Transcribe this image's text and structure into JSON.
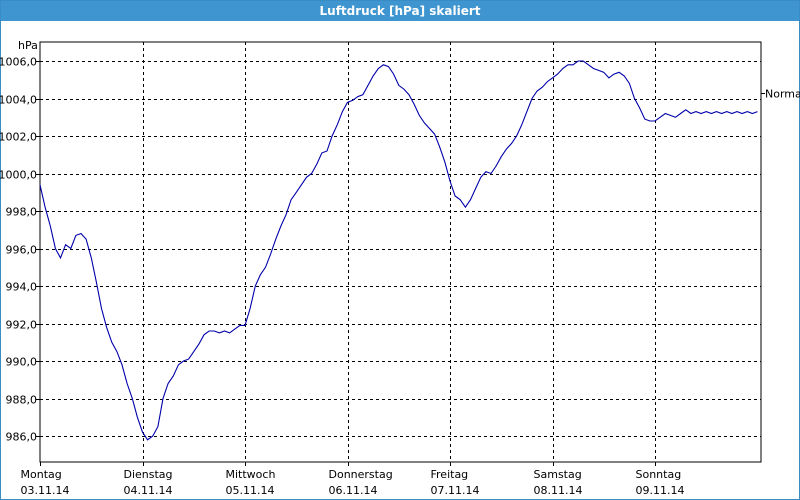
{
  "window": {
    "title": "Luftdruck [hPa] skaliert"
  },
  "chart_data": {
    "type": "line",
    "title": "Luftdruck [hPa] skaliert",
    "ylabel": "hPa",
    "xlabel": "",
    "ylim": [
      985.0,
      1007.0
    ],
    "yticks": [
      "986,0",
      "988,0",
      "990,0",
      "992,0",
      "994,0",
      "996,0",
      "998,0",
      "1000,0",
      "1002,0",
      "1004,0",
      "1006,0"
    ],
    "ytick_values": [
      986,
      988,
      990,
      992,
      994,
      996,
      998,
      1000,
      1002,
      1004,
      1006
    ],
    "xlim": [
      0,
      7.05
    ],
    "xtick_values": [
      0,
      1,
      2,
      3,
      4,
      5,
      6
    ],
    "xticks": [
      {
        "day": "Montag",
        "date": "03.11.14"
      },
      {
        "day": "Dienstag",
        "date": "04.11.14"
      },
      {
        "day": "Mittwoch",
        "date": "05.11.14"
      },
      {
        "day": "Donnerstag",
        "date": "06.11.14"
      },
      {
        "day": "Freitag",
        "date": "07.11.14"
      },
      {
        "day": "Samstag",
        "date": "08.11.14"
      },
      {
        "day": "Sonntag",
        "date": "09.11.14"
      }
    ],
    "grid": true,
    "reference_line": {
      "label": "Normal",
      "value": 1004.3
    },
    "line_color": "#0000aa",
    "series": [
      {
        "x": [
          0.0,
          0.05,
          0.1,
          0.15,
          0.2,
          0.25,
          0.3,
          0.35,
          0.4,
          0.45,
          0.5,
          0.55,
          0.6,
          0.65,
          0.7,
          0.75,
          0.8,
          0.85,
          0.9,
          0.95,
          1.0,
          1.05,
          1.1,
          1.15,
          1.2,
          1.25,
          1.3,
          1.35,
          1.4,
          1.45,
          1.5,
          1.55,
          1.6,
          1.65,
          1.7,
          1.75,
          1.8,
          1.85,
          1.9,
          1.95,
          2.0,
          2.05,
          2.1,
          2.15,
          2.2,
          2.25,
          2.3,
          2.35,
          2.4,
          2.45,
          2.5,
          2.55,
          2.6,
          2.65,
          2.7,
          2.75,
          2.8,
          2.85,
          2.9,
          2.95,
          3.0,
          3.05,
          3.1,
          3.15,
          3.2,
          3.25,
          3.3,
          3.35,
          3.4,
          3.45,
          3.5,
          3.55,
          3.6,
          3.65,
          3.7,
          3.75,
          3.8,
          3.85,
          3.9,
          3.95,
          4.0,
          4.05,
          4.1,
          4.15,
          4.2,
          4.25,
          4.3,
          4.35,
          4.4,
          4.45,
          4.5,
          4.55,
          4.6,
          4.65,
          4.7,
          4.75,
          4.8,
          4.85,
          4.9,
          4.95,
          5.0,
          5.05,
          5.1,
          5.15,
          5.2,
          5.25,
          5.3,
          5.35,
          5.4,
          5.45,
          5.5,
          5.55,
          5.6,
          5.65,
          5.7,
          5.75,
          5.8,
          5.85,
          5.9,
          5.95,
          6.0,
          6.05,
          6.1,
          6.15,
          6.2,
          6.25,
          6.3,
          6.35,
          6.4,
          6.45,
          6.5,
          6.55,
          6.6,
          6.65,
          6.7,
          6.75,
          6.8,
          6.85,
          6.9,
          6.95,
          7.0
        ],
        "y": [
          999.4,
          998.2,
          997.2,
          996.0,
          995.5,
          996.2,
          996.0,
          996.7,
          996.8,
          996.5,
          995.5,
          994.2,
          992.8,
          991.8,
          991.0,
          990.5,
          989.8,
          988.8,
          988.0,
          987.0,
          986.2,
          985.8,
          986.0,
          986.5,
          988.0,
          988.8,
          989.2,
          989.8,
          990.0,
          990.1,
          990.5,
          990.9,
          991.4,
          991.6,
          991.6,
          991.5,
          991.6,
          991.5,
          991.7,
          991.9,
          991.9,
          992.8,
          994.0,
          994.6,
          995.0,
          995.7,
          996.5,
          997.2,
          997.8,
          998.6,
          999.0,
          999.4,
          999.8,
          1000.0,
          1000.5,
          1001.1,
          1001.2,
          1002.0,
          1002.6,
          1003.3,
          1003.8,
          1003.9,
          1004.1,
          1004.2,
          1004.7,
          1005.2,
          1005.6,
          1005.8,
          1005.7,
          1005.3,
          1004.7,
          1004.5,
          1004.2,
          1003.7,
          1003.1,
          1002.7,
          1002.4,
          1002.1,
          1001.4,
          1000.6,
          999.6,
          998.8,
          998.6,
          998.2,
          998.6,
          999.2,
          999.8,
          1000.1,
          1000.0,
          1000.4,
          1000.9,
          1001.3,
          1001.6,
          1002.0,
          1002.6,
          1003.3,
          1004.0,
          1004.4,
          1004.6,
          1004.9,
          1005.1,
          1005.3,
          1005.6,
          1005.8,
          1005.8,
          1006.0,
          1006.0,
          1005.8,
          1005.6,
          1005.5,
          1005.4,
          1005.1,
          1005.3,
          1005.4,
          1005.2,
          1004.8,
          1004.0,
          1003.5,
          1002.9,
          1002.8,
          1002.8,
          1003.0,
          1003.2,
          1003.1,
          1003.0,
          1003.2,
          1003.4,
          1003.2,
          1003.3,
          1003.2,
          1003.3,
          1003.2,
          1003.3,
          1003.2,
          1003.3,
          1003.2,
          1003.3,
          1003.2,
          1003.3,
          1003.2,
          1003.3
        ]
      }
    ]
  }
}
